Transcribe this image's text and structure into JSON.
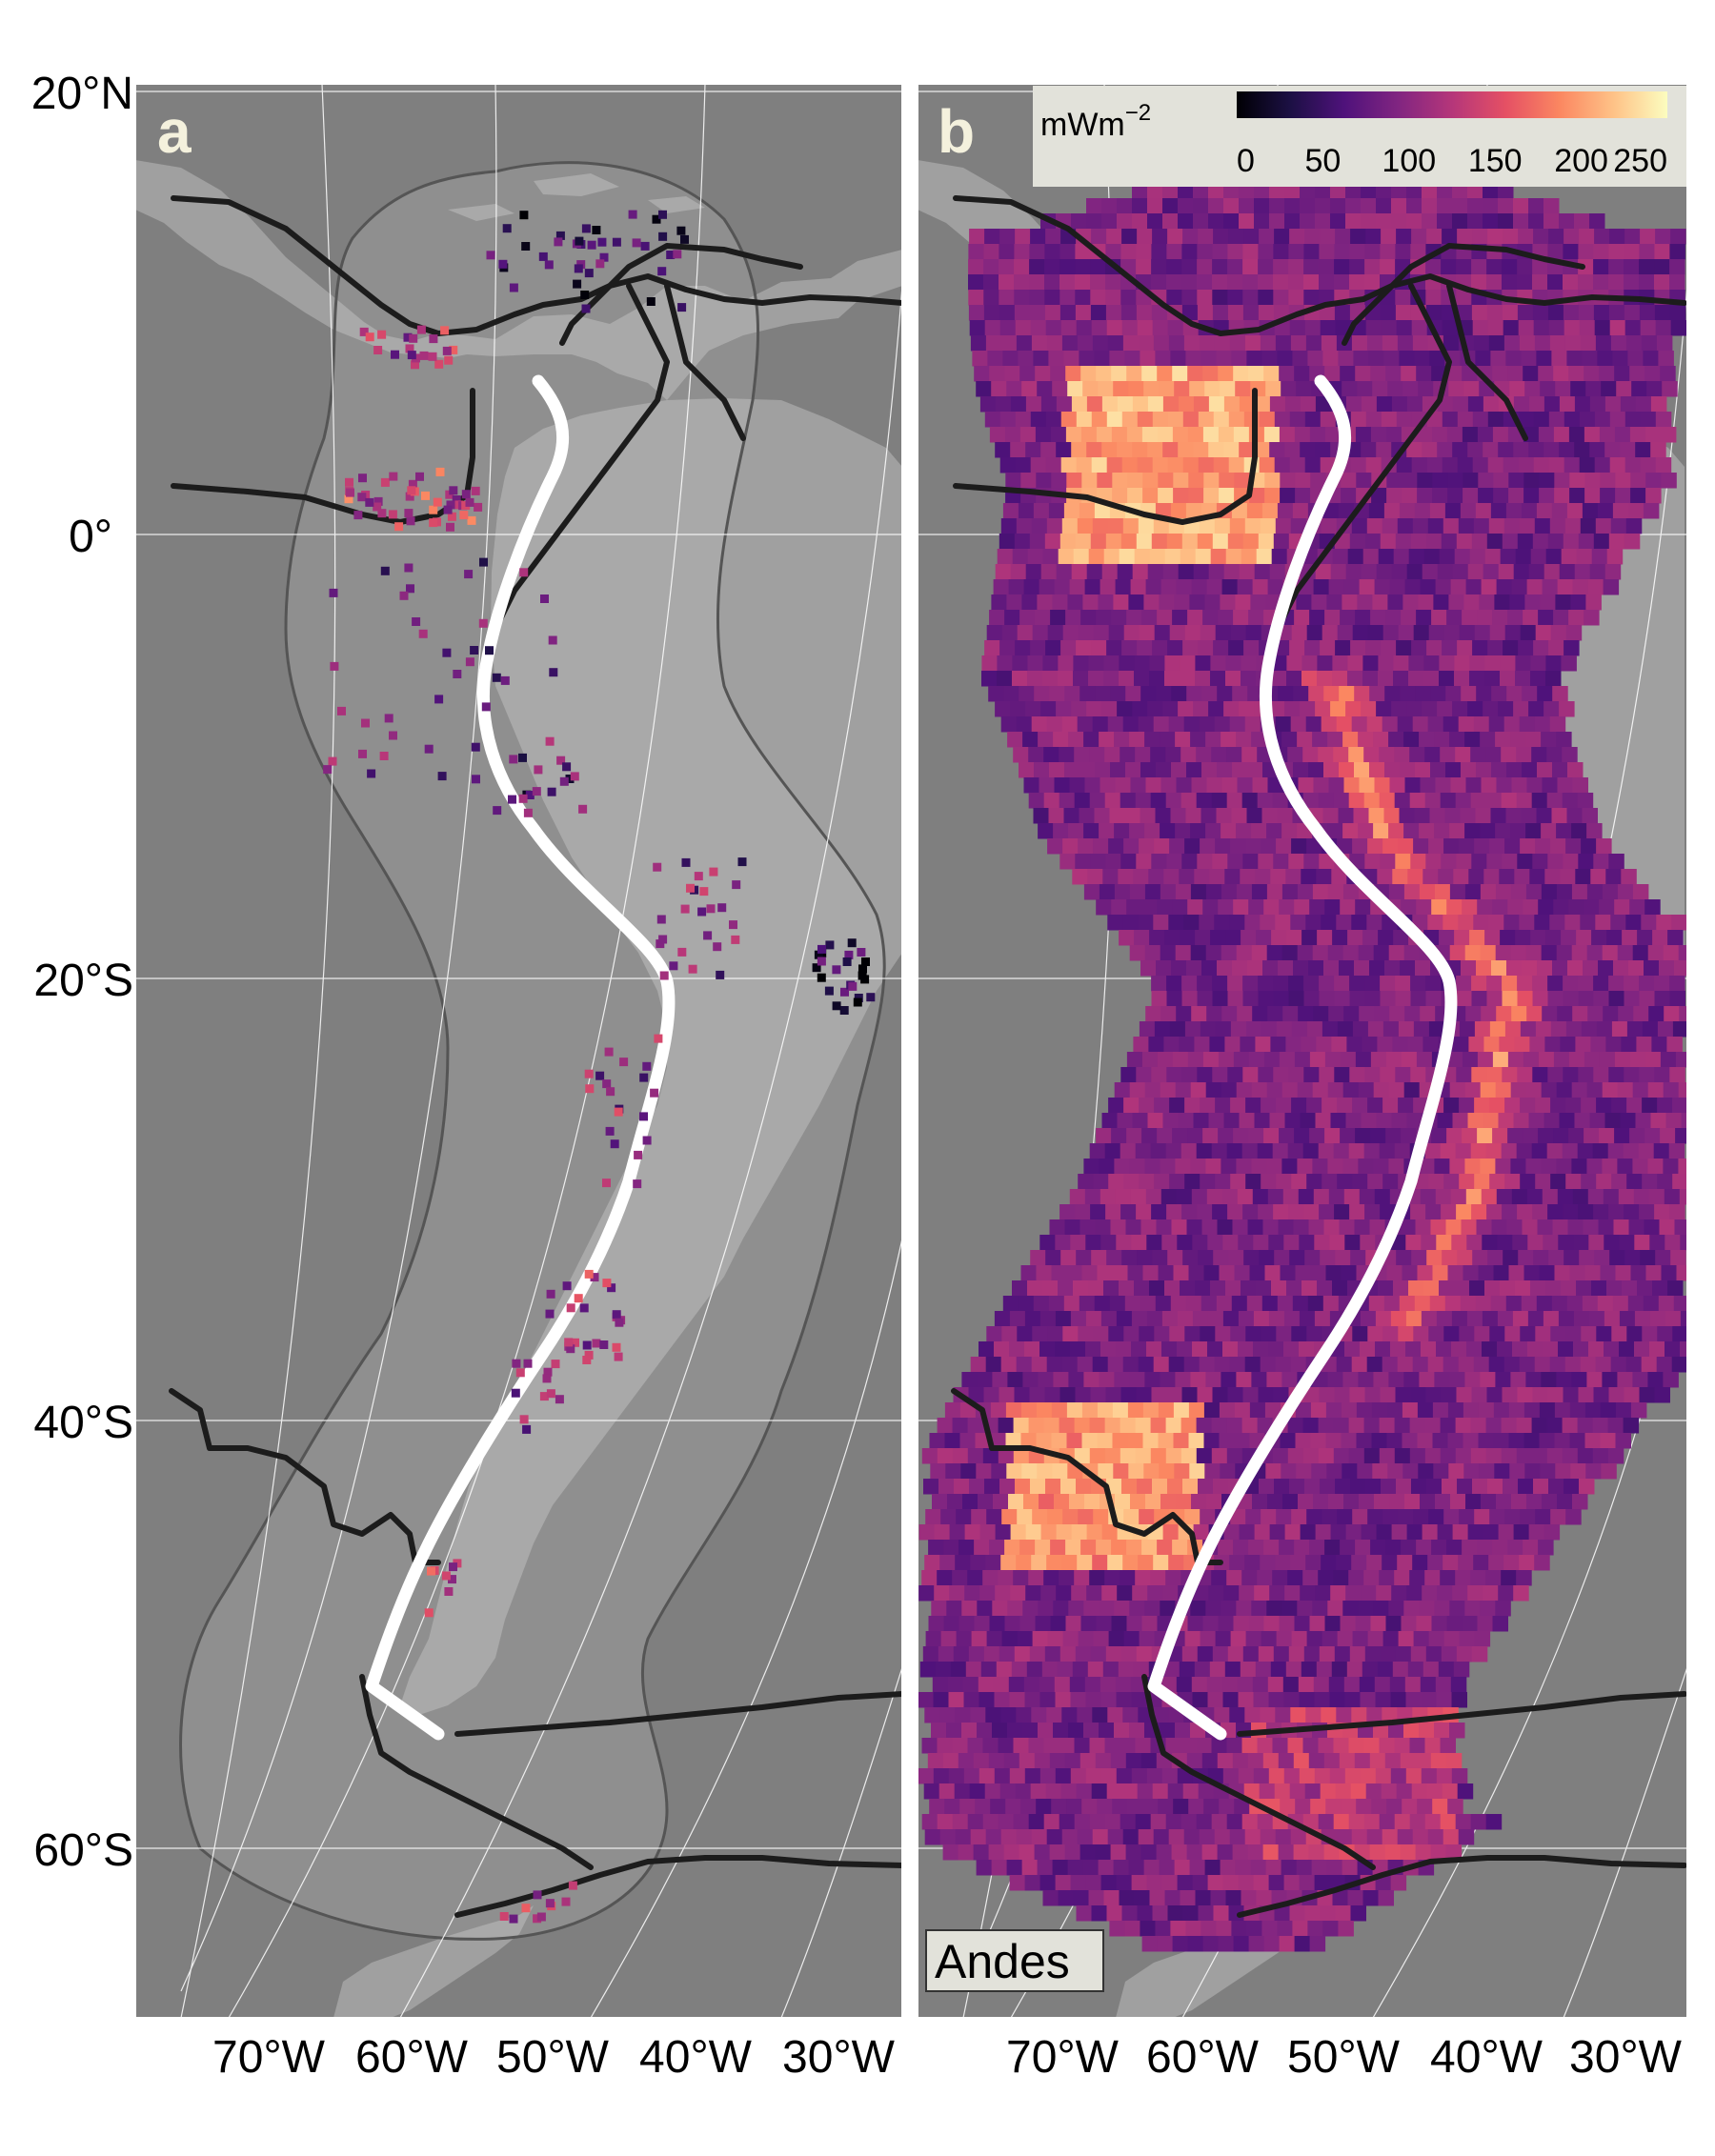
{
  "figure": {
    "colors": {
      "ocean": "#7f7f7f",
      "land": "#a0a0a0",
      "land_inside_region": "#b4b4b4",
      "plate_boundary": "#1c1c1c",
      "trench_line": "#ffffff",
      "graticule": "#ffffff",
      "legend_bg": "#e2e2da"
    },
    "panels": [
      {
        "letter": "a",
        "content": "heat flow observation points"
      },
      {
        "letter": "b",
        "content": "gridded heat flow prediction"
      }
    ],
    "latitude_labels": [
      "20°N",
      "0°",
      "20°S",
      "40°S",
      "60°S"
    ],
    "longitude_labels": [
      "70°W",
      "60°W",
      "50°W",
      "40°W",
      "30°W"
    ],
    "legend": {
      "title": "mWm",
      "title_superscript": "−2",
      "ticks": [
        "0",
        "50",
        "100",
        "150",
        "200",
        "250"
      ],
      "range": [
        0,
        250
      ],
      "colormap": "magma",
      "colormap_stops": [
        "#000004",
        "#1c1044",
        "#4f127b",
        "#812581",
        "#b5367a",
        "#e55064",
        "#fb8761",
        "#fec287",
        "#fcfdbf"
      ]
    },
    "region_label": "Andes"
  }
}
